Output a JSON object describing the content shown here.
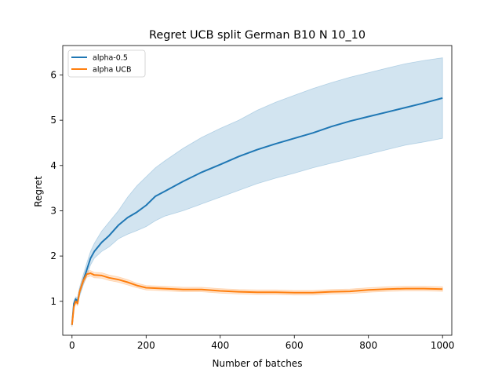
{
  "chart_data": {
    "type": "line",
    "title": "Regret UCB split German B10 N 10_10",
    "xlabel": "Number of batches",
    "ylabel": "Regret",
    "xlim": [
      -25,
      1025
    ],
    "ylim": [
      0.25,
      6.65
    ],
    "xticks": [
      0,
      200,
      400,
      600,
      800,
      1000
    ],
    "yticks": [
      1,
      2,
      3,
      4,
      5,
      6
    ],
    "grid": false,
    "legend_position": "top-left",
    "series": [
      {
        "name": "alpha-0.5",
        "color": "#1f77b4",
        "x": [
          0,
          5,
          10,
          15,
          20,
          30,
          40,
          50,
          60,
          80,
          100,
          125,
          150,
          175,
          200,
          225,
          250,
          300,
          350,
          400,
          450,
          500,
          550,
          600,
          650,
          700,
          750,
          800,
          850,
          900,
          950,
          1000
        ],
        "y": [
          0.48,
          0.95,
          1.05,
          1.0,
          1.2,
          1.45,
          1.7,
          1.95,
          2.1,
          2.3,
          2.45,
          2.68,
          2.85,
          2.97,
          3.12,
          3.32,
          3.43,
          3.65,
          3.85,
          4.02,
          4.2,
          4.35,
          4.48,
          4.6,
          4.72,
          4.86,
          4.98,
          5.08,
          5.18,
          5.28,
          5.38,
          5.49
        ],
        "upper": [
          0.52,
          1.0,
          1.1,
          1.08,
          1.3,
          1.58,
          1.85,
          2.1,
          2.28,
          2.55,
          2.75,
          3.0,
          3.3,
          3.55,
          3.75,
          3.95,
          4.1,
          4.38,
          4.62,
          4.82,
          5.0,
          5.22,
          5.4,
          5.55,
          5.7,
          5.83,
          5.95,
          6.05,
          6.15,
          6.25,
          6.32,
          6.38
        ],
        "lower": [
          0.44,
          0.9,
          1.0,
          0.93,
          1.1,
          1.35,
          1.57,
          1.8,
          1.95,
          2.1,
          2.2,
          2.38,
          2.48,
          2.56,
          2.65,
          2.78,
          2.88,
          3.0,
          3.15,
          3.3,
          3.45,
          3.6,
          3.72,
          3.83,
          3.95,
          4.05,
          4.15,
          4.25,
          4.35,
          4.45,
          4.52,
          4.6
        ]
      },
      {
        "name": "alpha UCB",
        "color": "#ff7f0e",
        "x": [
          0,
          5,
          10,
          15,
          20,
          30,
          40,
          50,
          60,
          80,
          100,
          125,
          150,
          175,
          200,
          250,
          300,
          350,
          400,
          450,
          500,
          550,
          600,
          650,
          700,
          750,
          800,
          850,
          900,
          950,
          1000
        ],
        "y": [
          0.48,
          0.88,
          1.0,
          0.95,
          1.2,
          1.45,
          1.6,
          1.62,
          1.58,
          1.57,
          1.52,
          1.48,
          1.42,
          1.35,
          1.3,
          1.28,
          1.26,
          1.26,
          1.23,
          1.21,
          1.2,
          1.2,
          1.19,
          1.19,
          1.21,
          1.22,
          1.25,
          1.27,
          1.28,
          1.28,
          1.27
        ],
        "upper": [
          0.52,
          0.93,
          1.05,
          1.0,
          1.25,
          1.52,
          1.67,
          1.68,
          1.64,
          1.63,
          1.58,
          1.54,
          1.48,
          1.4,
          1.35,
          1.33,
          1.31,
          1.31,
          1.28,
          1.26,
          1.25,
          1.25,
          1.24,
          1.24,
          1.26,
          1.27,
          1.3,
          1.32,
          1.33,
          1.33,
          1.32
        ],
        "lower": [
          0.44,
          0.83,
          0.95,
          0.9,
          1.15,
          1.38,
          1.53,
          1.56,
          1.52,
          1.51,
          1.46,
          1.42,
          1.36,
          1.3,
          1.25,
          1.23,
          1.21,
          1.21,
          1.18,
          1.16,
          1.15,
          1.15,
          1.14,
          1.14,
          1.16,
          1.17,
          1.2,
          1.22,
          1.23,
          1.23,
          1.22
        ]
      }
    ]
  }
}
